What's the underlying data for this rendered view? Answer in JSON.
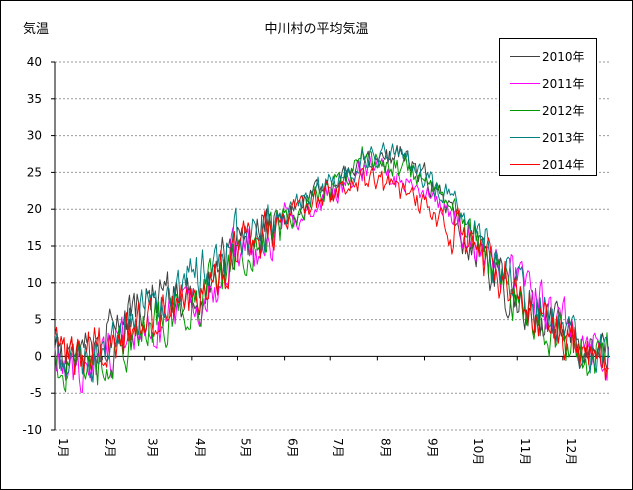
{
  "chart_data": {
    "type": "line",
    "title": "中川村の平均気温",
    "ylabel": "気温",
    "xlabel": "",
    "ylim": [
      -10,
      40
    ],
    "yticks": [
      -10,
      -5,
      0,
      5,
      10,
      15,
      20,
      25,
      30,
      35,
      40
    ],
    "xlim": [
      0,
      365
    ],
    "month_labels": [
      "1月",
      "2月",
      "3月",
      "4月",
      "5月",
      "6月",
      "7月",
      "8月",
      "9月",
      "10月",
      "11月",
      "12月"
    ],
    "month_starts": [
      0,
      31,
      59,
      90,
      120,
      151,
      181,
      212,
      243,
      273,
      304,
      334
    ],
    "grid": "horizontal dashed",
    "legend_position": "top-right",
    "x": [
      0,
      15,
      31,
      45,
      59,
      75,
      90,
      105,
      120,
      135,
      151,
      165,
      181,
      196,
      205,
      212,
      220,
      228,
      243,
      258,
      273,
      288,
      304,
      320,
      334,
      350,
      362
    ],
    "series": [
      {
        "name": "2010年",
        "color": "#404040",
        "values": [
          0.5,
          1.0,
          2.0,
          6.0,
          7.0,
          8.0,
          9.0,
          12.0,
          15.0,
          17.0,
          18.5,
          21.0,
          22.5,
          25.5,
          26.5,
          27.0,
          27.0,
          27.0,
          25.0,
          20.0,
          16.0,
          11.0,
          8.0,
          5.0,
          3.0,
          1.0,
          0.5
        ]
      },
      {
        "name": "2011年",
        "color": "#ff00ff",
        "values": [
          0.0,
          -1.5,
          -0.5,
          1.5,
          3.0,
          5.0,
          7.0,
          10.0,
          14.0,
          16.0,
          17.5,
          20.0,
          22.0,
          24.5,
          25.5,
          25.0,
          24.5,
          24.0,
          23.0,
          20.0,
          16.0,
          13.0,
          10.0,
          7.0,
          4.0,
          1.5,
          0.0
        ]
      },
      {
        "name": "2012年",
        "color": "#009900",
        "values": [
          -0.5,
          -1.0,
          -2.0,
          1.5,
          4.0,
          5.5,
          7.0,
          10.0,
          13.5,
          16.5,
          18.0,
          21.0,
          22.5,
          26.0,
          27.5,
          26.5,
          26.0,
          25.5,
          25.0,
          20.5,
          17.0,
          12.0,
          8.0,
          5.0,
          2.0,
          0.0,
          1.0
        ]
      },
      {
        "name": "2013年",
        "color": "#008080",
        "values": [
          1.5,
          -1.5,
          -1.0,
          4.0,
          8.0,
          8.0,
          10.0,
          13.0,
          16.0,
          17.0,
          19.0,
          21.5,
          23.5,
          25.5,
          27.5,
          27.5,
          28.0,
          27.0,
          24.0,
          22.0,
          18.0,
          13.0,
          9.0,
          6.0,
          3.0,
          1.0,
          0.0
        ]
      },
      {
        "name": "2014年",
        "color": "#ff0000",
        "values": [
          0.5,
          0.0,
          1.0,
          3.0,
          5.0,
          6.0,
          9.0,
          11.0,
          14.0,
          16.5,
          19.0,
          20.0,
          22.0,
          24.0,
          24.0,
          23.5,
          23.0,
          22.0,
          20.0,
          18.0,
          15.0,
          12.0,
          9.0,
          5.5,
          3.0,
          0.0,
          -1.0
        ]
      }
    ]
  }
}
